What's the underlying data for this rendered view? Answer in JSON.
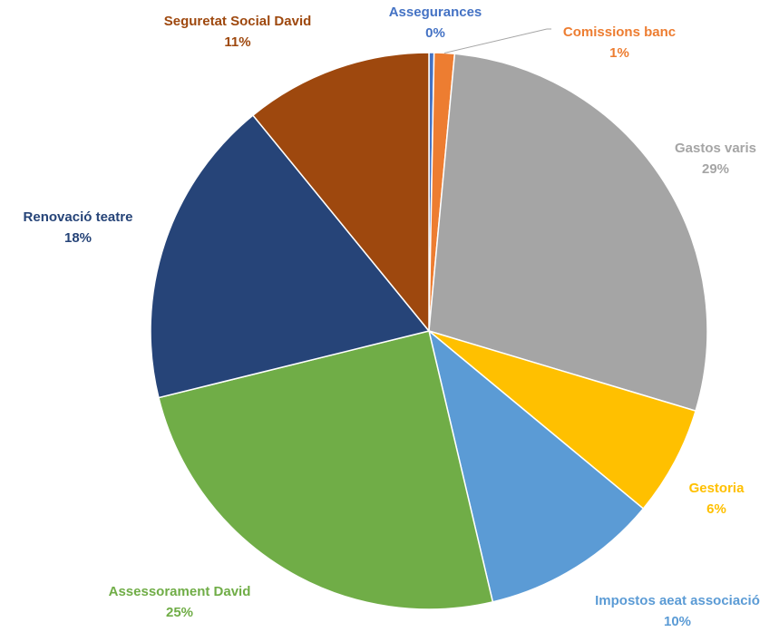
{
  "chart_data": {
    "type": "pie",
    "title": "",
    "start": "top, clockwise",
    "slices": [
      {
        "label": "Assegurances",
        "pct_label": "0%",
        "value": 0.3,
        "color": "#4472C4"
      },
      {
        "label": "Comissions banc",
        "pct_label": "1%",
        "value": 1.2,
        "color": "#ED7D31"
      },
      {
        "label": "Gastos varis",
        "pct_label": "29%",
        "value": 28.7,
        "color": "#A5A5A5"
      },
      {
        "label": "Gestoria",
        "pct_label": "6%",
        "value": 6.5,
        "color": "#FFC000"
      },
      {
        "label": "Impostos aeat associació",
        "pct_label": "10%",
        "value": 10.5,
        "color": "#5B9BD5"
      },
      {
        "label": "Assessorament David",
        "pct_label": "25%",
        "value": 25.3,
        "color": "#70AD47"
      },
      {
        "label": "Renovació teatre",
        "pct_label": "18%",
        "value": 18.3,
        "color": "#264478"
      },
      {
        "label": "Seguretat Social David",
        "pct_label": "11%",
        "value": 11.1,
        "color": "#9E480E"
      }
    ]
  }
}
